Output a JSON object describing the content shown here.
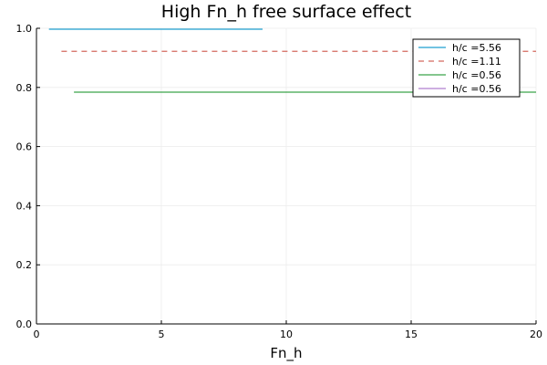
{
  "chart_data": {
    "type": "line",
    "title": "High Fn_h free surface effect",
    "xlabel": "Fn_h",
    "ylabel": "",
    "xlim": [
      0,
      20
    ],
    "ylim": [
      0.0,
      1.0
    ],
    "xticks": [
      0,
      5,
      10,
      15,
      20
    ],
    "xtick_labels": [
      "0",
      "5",
      "10",
      "15",
      "20"
    ],
    "yticks": [
      0.0,
      0.2,
      0.4,
      0.6,
      0.8,
      1.0
    ],
    "ytick_labels": [
      "0.0",
      "0.2",
      "0.4",
      "0.6",
      "0.8",
      "1.0"
    ],
    "grid": true,
    "legend_position": "top-right",
    "series": [
      {
        "name": "h/c =5.56",
        "color": "#1f9fd0",
        "dash": "solid",
        "x": [
          0.5,
          9.05
        ],
        "y": [
          0.997,
          0.997
        ]
      },
      {
        "name": "h/c =1.11",
        "color": "#d4695f",
        "dash": "dashed",
        "x": [
          1.0,
          20.0
        ],
        "y": [
          0.922,
          0.922
        ]
      },
      {
        "name": "h/c =0.56",
        "color": "#3aa34a",
        "dash": "solid",
        "x": [
          1.5,
          20.0
        ],
        "y": [
          0.784,
          0.784
        ]
      },
      {
        "name": "h/c =0.56",
        "color": "#b07fcf",
        "dash": "solid",
        "x": [],
        "y": []
      }
    ]
  }
}
